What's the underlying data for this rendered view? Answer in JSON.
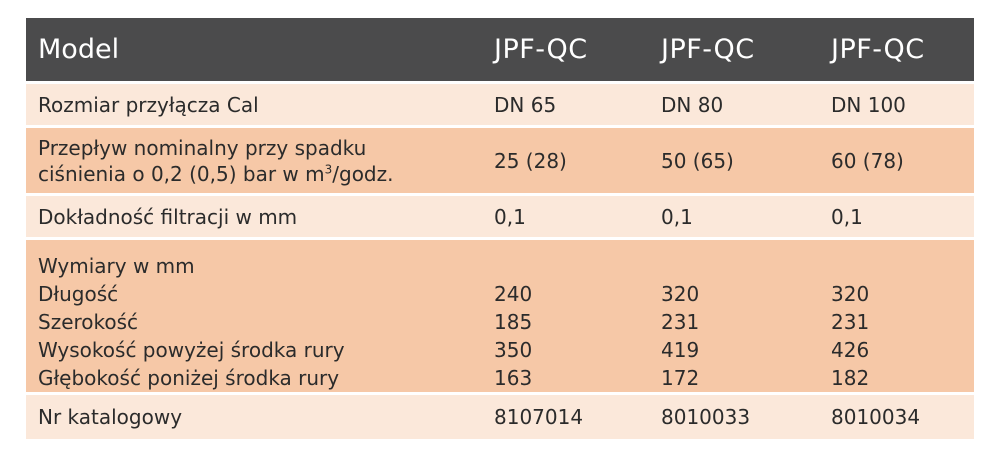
{
  "header": {
    "label": "Model",
    "models": [
      "JPF-QC",
      "JPF-QC",
      "JPF-QC"
    ]
  },
  "rows": {
    "connection": {
      "label": "Rozmiar przyłącza Cal",
      "values": [
        "DN 65",
        "DN 80",
        "DN 100"
      ]
    },
    "flow": {
      "label_line1": "Przepływ nominalny przy spadku",
      "label_line2_pre": "ciśnienia o 0,2 (0,5) bar w m",
      "label_line2_sup": "3",
      "label_line2_post": "/godz.",
      "values": [
        "25 (28)",
        "50 (65)",
        "60 (78)"
      ]
    },
    "filtration": {
      "label": "Dokładność filtracji w mm",
      "values": [
        "0,1",
        "0,1",
        "0,1"
      ]
    },
    "dimensions": {
      "title": "Wymiary w mm",
      "items": [
        {
          "label": "Długość",
          "values": [
            "240",
            "320",
            "320"
          ]
        },
        {
          "label": "Szerokość",
          "values": [
            "185",
            "231",
            "231"
          ]
        },
        {
          "label": "Wysokość powyżej środka rury",
          "values": [
            "350",
            "419",
            "426"
          ]
        },
        {
          "label": "Głębokość poniżej środka rury",
          "values": [
            "163",
            "172",
            "182"
          ]
        }
      ]
    },
    "catalog": {
      "label": "Nr katalogowy",
      "values": [
        "8107014",
        "8010033",
        "8010034"
      ]
    }
  },
  "colors": {
    "header_bg": "#4b4b4c",
    "row_light": "#fbe8da",
    "row_dark": "#f6c8a7"
  }
}
